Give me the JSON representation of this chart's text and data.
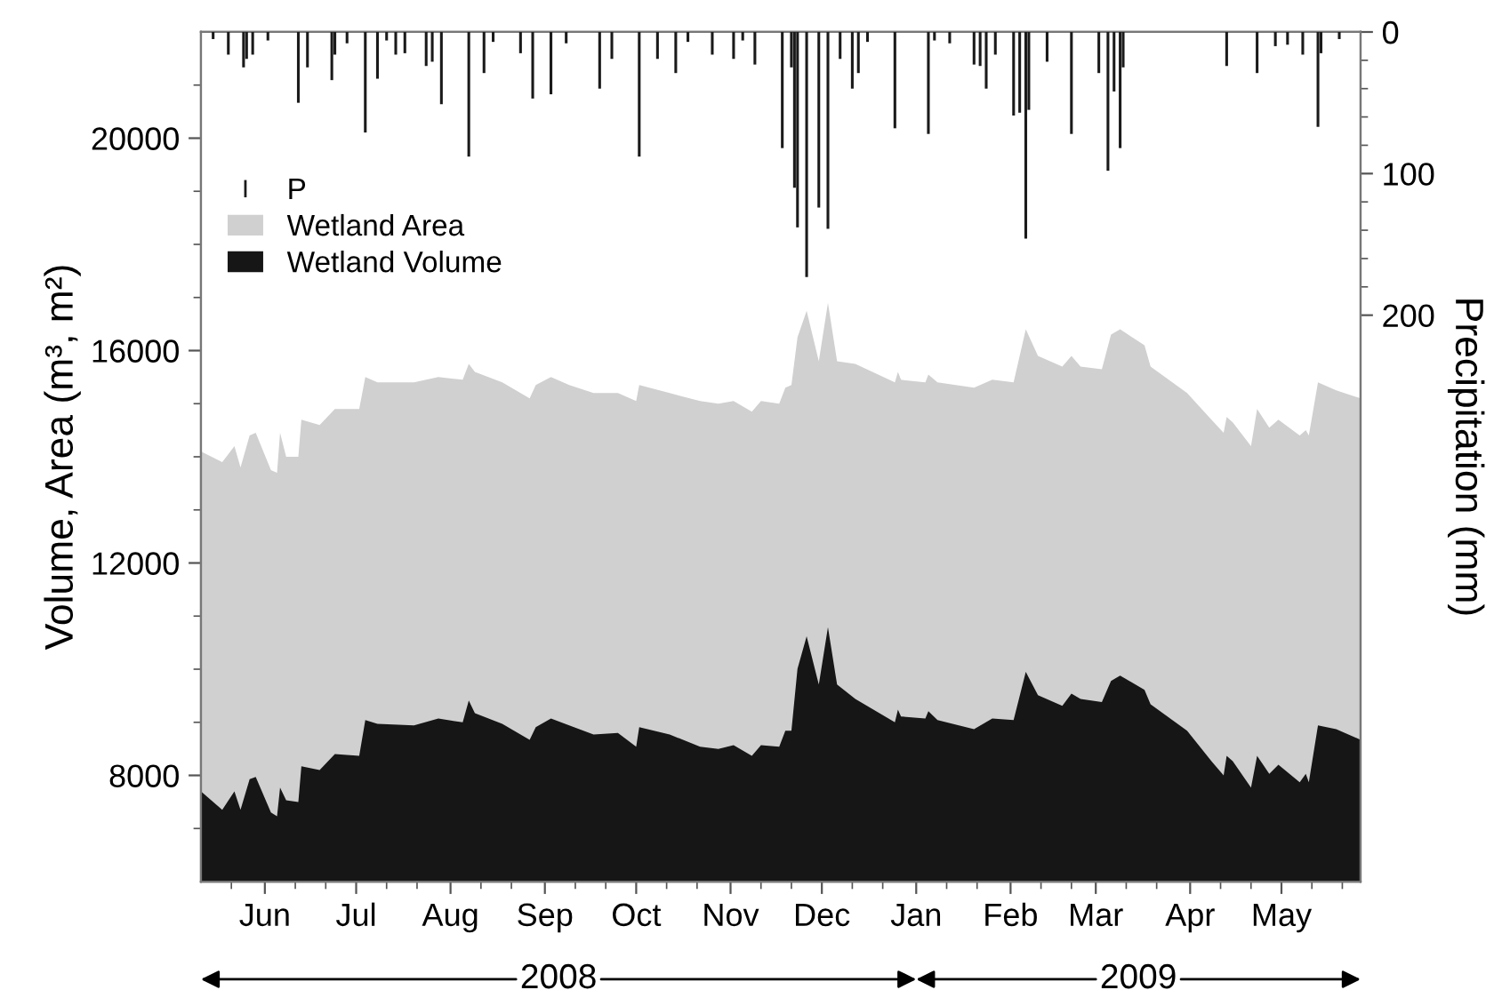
{
  "chart_data": {
    "type": "area",
    "ylabel": "Volume, Area (m³, m²)",
    "y2label": "Precipitation (mm)",
    "annotations": [
      "2008",
      "2009"
    ],
    "xlim": [
      "2008-05-11",
      "2009-05-27"
    ],
    "xticks": [
      {
        "value": "2008-05-21",
        "label": null
      },
      {
        "value": "2008-06-01",
        "label": "Jun"
      },
      {
        "value": "2008-06-11",
        "label": null
      },
      {
        "value": "2008-06-21",
        "label": null
      },
      {
        "value": "2008-07-01",
        "label": "Jul"
      },
      {
        "value": "2008-07-11",
        "label": null
      },
      {
        "value": "2008-07-21",
        "label": null
      },
      {
        "value": "2008-08-01",
        "label": "Aug"
      },
      {
        "value": "2008-08-11",
        "label": null
      },
      {
        "value": "2008-08-21",
        "label": null
      },
      {
        "value": "2008-09-01",
        "label": "Sep"
      },
      {
        "value": "2008-09-11",
        "label": null
      },
      {
        "value": "2008-09-21",
        "label": null
      },
      {
        "value": "2008-10-01",
        "label": "Oct"
      },
      {
        "value": "2008-10-11",
        "label": null
      },
      {
        "value": "2008-10-21",
        "label": null
      },
      {
        "value": "2008-11-01",
        "label": "Nov"
      },
      {
        "value": "2008-11-11",
        "label": null
      },
      {
        "value": "2008-11-21",
        "label": null
      },
      {
        "value": "2008-12-01",
        "label": "Dec"
      },
      {
        "value": "2008-12-11",
        "label": null
      },
      {
        "value": "2008-12-21",
        "label": null
      },
      {
        "value": "2009-01-01",
        "label": "Jan"
      },
      {
        "value": "2009-01-11",
        "label": null
      },
      {
        "value": "2009-01-21",
        "label": null
      },
      {
        "value": "2009-02-01",
        "label": "Feb"
      },
      {
        "value": "2009-02-11",
        "label": null
      },
      {
        "value": "2009-02-21",
        "label": null
      },
      {
        "value": "2009-03-01",
        "label": "Mar"
      },
      {
        "value": "2009-03-11",
        "label": null
      },
      {
        "value": "2009-03-21",
        "label": null
      },
      {
        "value": "2009-04-01",
        "label": "Apr"
      },
      {
        "value": "2009-04-11",
        "label": null
      },
      {
        "value": "2009-04-21",
        "label": null
      },
      {
        "value": "2009-05-01",
        "label": "May"
      },
      {
        "value": "2009-05-11",
        "label": null
      },
      {
        "value": "2009-05-21",
        "label": null
      }
    ],
    "ylim": [
      6000,
      22000
    ],
    "yticks": [
      {
        "value": 7000,
        "label": null
      },
      8000,
      {
        "value": 9000,
        "label": null
      },
      {
        "value": 10000,
        "label": null
      },
      {
        "value": 11000,
        "label": null
      },
      12000,
      {
        "value": 13000,
        "label": null
      },
      {
        "value": 14000,
        "label": null
      },
      {
        "value": 15000,
        "label": null
      },
      16000,
      {
        "value": 17000,
        "label": null
      },
      {
        "value": 18000,
        "label": null
      },
      {
        "value": 19000,
        "label": null
      },
      20000,
      {
        "value": 21000,
        "label": null
      }
    ],
    "y2lim": [
      600,
      0
    ],
    "y2ticks": [
      0,
      {
        "value": 20,
        "label": null
      },
      {
        "value": 40,
        "label": null
      },
      {
        "value": 60,
        "label": null
      },
      {
        "value": 80,
        "label": null
      },
      100,
      {
        "value": 120,
        "label": null
      },
      {
        "value": 140,
        "label": null
      },
      {
        "value": 160,
        "label": null
      },
      {
        "value": 180,
        "label": null
      },
      200
    ],
    "legend": "top left",
    "grid": false,
    "x": [
      "2008-05-11",
      "2008-05-18",
      "2008-05-22",
      "2008-05-24",
      "2008-05-27",
      "2008-05-29",
      "2008-06-03",
      "2008-06-05",
      "2008-06-06",
      "2008-06-08",
      "2008-06-12",
      "2008-06-13",
      "2008-06-19",
      "2008-06-24",
      "2008-07-02",
      "2008-07-04",
      "2008-07-08",
      "2008-07-20",
      "2008-07-28",
      "2008-08-05",
      "2008-08-07",
      "2008-08-09",
      "2008-08-18",
      "2008-08-27",
      "2008-08-29",
      "2008-09-03",
      "2008-09-09",
      "2008-09-17",
      "2008-09-25",
      "2008-10-01",
      "2008-10-02",
      "2008-10-12",
      "2008-10-22",
      "2008-10-28",
      "2008-11-02",
      "2008-11-08",
      "2008-11-11",
      "2008-11-17",
      "2008-11-19",
      "2008-11-21",
      "2008-11-23",
      "2008-11-26",
      "2008-11-30",
      "2008-12-03",
      "2008-12-06",
      "2008-12-12",
      "2008-12-25",
      "2008-12-26",
      "2008-12-27",
      "2009-01-04",
      "2009-01-05",
      "2009-01-08",
      "2009-01-20",
      "2009-01-26",
      "2009-02-02",
      "2009-02-06",
      "2009-02-10",
      "2009-02-18",
      "2009-02-21",
      "2009-02-24",
      "2009-03-03",
      "2009-03-06",
      "2009-03-09",
      "2009-03-17",
      "2009-03-19",
      "2009-03-31",
      "2009-04-08",
      "2009-04-12",
      "2009-04-13",
      "2009-04-15",
      "2009-04-21",
      "2009-04-23",
      "2009-04-27",
      "2009-04-30",
      "2009-05-07",
      "2009-05-09",
      "2009-05-10",
      "2009-05-13",
      "2009-05-19",
      "2009-05-27"
    ],
    "series": [
      {
        "name": "P",
        "type": "bar",
        "axis": "y2",
        "color": "#1a1a1a",
        "x": [
          "2008-05-15",
          "2008-05-20",
          "2008-05-25",
          "2008-05-26",
          "2008-05-28",
          "2008-06-02",
          "2008-06-12",
          "2008-06-15",
          "2008-06-23",
          "2008-06-24",
          "2008-06-28",
          "2008-07-04",
          "2008-07-08",
          "2008-07-11",
          "2008-07-14",
          "2008-07-17",
          "2008-07-24",
          "2008-07-26",
          "2008-07-29",
          "2008-08-07",
          "2008-08-12",
          "2008-08-15",
          "2008-08-24",
          "2008-08-28",
          "2008-09-03",
          "2008-09-08",
          "2008-09-19",
          "2008-09-23",
          "2008-10-02",
          "2008-10-08",
          "2008-10-14",
          "2008-10-18",
          "2008-10-26",
          "2008-11-02",
          "2008-11-05",
          "2008-11-09",
          "2008-11-18",
          "2008-11-21",
          "2008-11-22",
          "2008-11-23",
          "2008-11-26",
          "2008-11-30",
          "2008-12-03",
          "2008-12-07",
          "2008-12-11",
          "2008-12-13",
          "2008-12-16",
          "2008-12-25",
          "2009-01-05",
          "2009-01-07",
          "2009-01-12",
          "2009-01-20",
          "2009-01-22",
          "2009-01-24",
          "2009-01-27",
          "2009-02-02",
          "2009-02-04",
          "2009-02-06",
          "2009-02-07",
          "2009-02-13",
          "2009-02-21",
          "2009-03-02",
          "2009-03-05",
          "2009-03-07",
          "2009-03-09",
          "2009-03-10",
          "2009-04-13",
          "2009-04-23",
          "2009-04-29",
          "2009-05-03",
          "2009-05-08",
          "2009-05-13",
          "2009-05-14",
          "2009-05-20"
        ],
        "values": [
          5,
          16,
          25,
          19,
          16,
          6,
          50,
          25,
          34,
          16,
          8,
          71,
          33,
          6,
          16,
          15,
          24,
          21,
          51,
          88,
          29,
          7,
          15,
          47,
          44,
          8,
          40,
          19,
          88,
          19,
          29,
          7,
          16,
          19,
          6,
          23,
          82,
          25,
          110,
          138,
          173,
          124,
          139,
          19,
          40,
          29,
          7,
          68,
          72,
          6,
          8,
          23,
          24,
          40,
          16,
          59,
          57,
          146,
          55,
          21,
          72,
          29,
          98,
          42,
          82,
          25,
          24,
          29,
          10,
          9,
          16,
          67,
          15,
          5
        ]
      },
      {
        "name": "Wetland Area",
        "color": "#d0d0d0",
        "values": [
          14100,
          13900,
          14200,
          13800,
          14400,
          14450,
          13750,
          13700,
          14450,
          14000,
          14000,
          14700,
          14600,
          14900,
          14900,
          15500,
          15400,
          15400,
          15500,
          15450,
          15750,
          15600,
          15400,
          15100,
          15350,
          15500,
          15350,
          15200,
          15200,
          15050,
          15350,
          15200,
          15050,
          15000,
          15050,
          14850,
          15050,
          15000,
          15300,
          15350,
          16250,
          16750,
          15800,
          16900,
          15800,
          15750,
          15400,
          15600,
          15450,
          15400,
          15550,
          15400,
          15300,
          15450,
          15400,
          16400,
          15900,
          15700,
          15900,
          15700,
          15650,
          16300,
          16400,
          16100,
          15700,
          15200,
          14700,
          14450,
          14750,
          14650,
          14200,
          14900,
          14550,
          14700,
          14400,
          14500,
          14400,
          15400,
          15250,
          15100
        ]
      },
      {
        "name": "Wetland Volume",
        "color": "#161616",
        "values": [
          7700,
          7350,
          7700,
          7350,
          7930,
          7970,
          7300,
          7230,
          7770,
          7530,
          7500,
          8170,
          8100,
          8400,
          8370,
          9040,
          8970,
          8940,
          9070,
          9000,
          9410,
          9170,
          8970,
          8670,
          8910,
          9070,
          8940,
          8770,
          8800,
          8540,
          8910,
          8770,
          8540,
          8500,
          8570,
          8370,
          8570,
          8540,
          8840,
          8840,
          10010,
          10620,
          9710,
          10790,
          9710,
          9440,
          9000,
          9240,
          9110,
          9070,
          9210,
          9040,
          8870,
          9070,
          9040,
          9950,
          9510,
          9310,
          9540,
          9440,
          9380,
          9780,
          9880,
          9610,
          9340,
          8840,
          8270,
          8000,
          8370,
          8270,
          7770,
          8370,
          8030,
          8200,
          7870,
          8030,
          7870,
          8940,
          8870,
          8670
        ]
      }
    ]
  }
}
